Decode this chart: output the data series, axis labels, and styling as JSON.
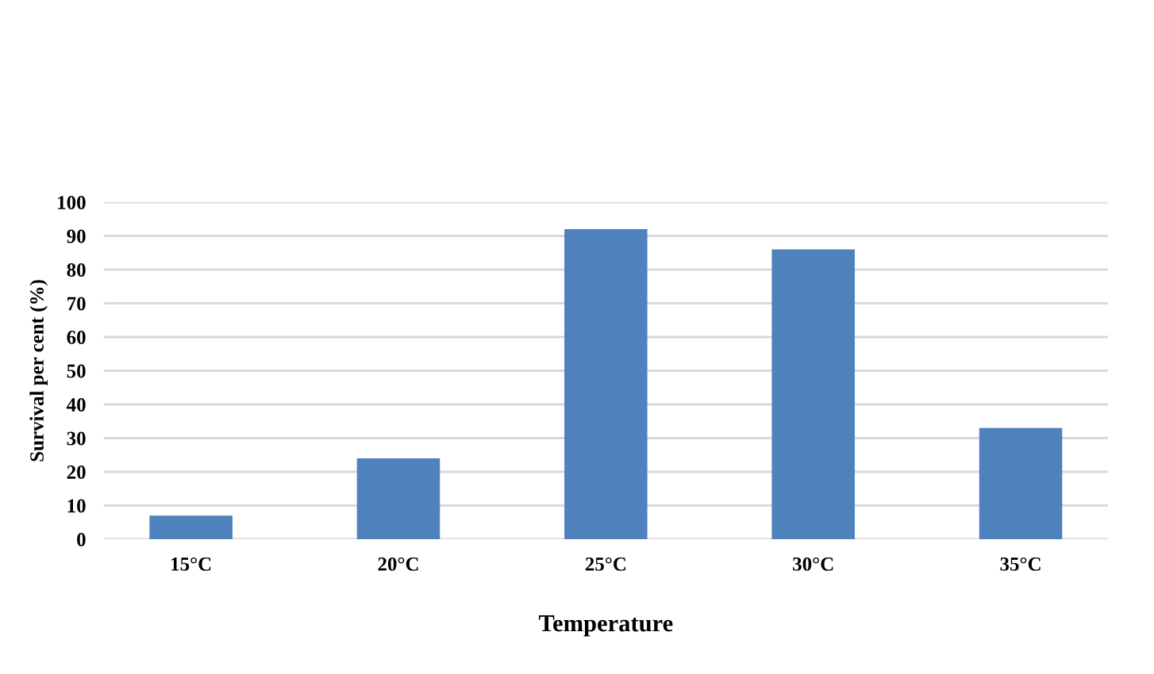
{
  "chart_data": {
    "type": "bar",
    "xlabel": "Temperature",
    "ylabel": "Survival per cent (%)",
    "categories": [
      "15°C",
      "20°C",
      "25°C",
      "30°C",
      "35°C"
    ],
    "values": [
      7,
      24,
      92,
      86,
      33
    ],
    "color": "#4f81bd",
    "ylim": [
      0,
      100
    ],
    "yticks": [
      0,
      10,
      20,
      30,
      40,
      50,
      60,
      70,
      80,
      90,
      100
    ],
    "grid": "y",
    "legend": false
  }
}
